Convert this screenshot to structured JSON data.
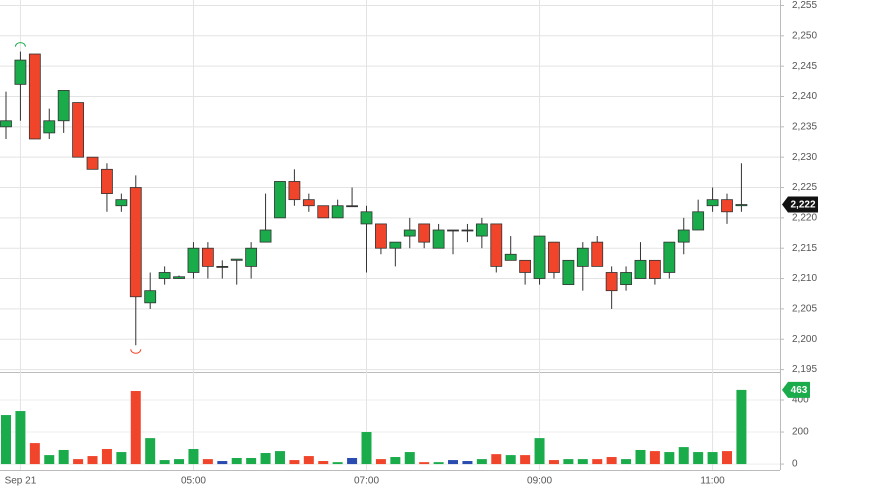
{
  "chart_data": {
    "type": "candlestick",
    "categories": [
      null,
      "Sep 21",
      null,
      null,
      null,
      null,
      null,
      null,
      null,
      null,
      null,
      null,
      null,
      "05:00",
      null,
      null,
      null,
      null,
      null,
      null,
      null,
      null,
      null,
      null,
      null,
      "07:00",
      null,
      null,
      null,
      null,
      null,
      null,
      null,
      null,
      null,
      null,
      null,
      "09:00",
      null,
      null,
      null,
      null,
      null,
      null,
      null,
      null,
      null,
      null,
      null,
      "11:00",
      null,
      null
    ],
    "open": [
      2235,
      2242,
      2247,
      2234,
      2236,
      2239,
      2230,
      2228,
      2222,
      2225,
      2206,
      2210,
      2210,
      2211,
      2215,
      2212,
      2213,
      2212,
      2216,
      2220,
      2226,
      2223,
      2222,
      2220,
      2222,
      2219,
      2219,
      2215,
      2217,
      2219,
      2215,
      2218,
      2218,
      2217,
      2219,
      2213,
      2213,
      2210,
      2216,
      2209,
      2212,
      2216,
      2211,
      2209,
      2210,
      2213,
      2211,
      2216,
      2218,
      2222,
      2223,
      2222
    ],
    "high": [
      2240.8,
      2247.4,
      2247,
      2238,
      2241,
      2239,
      2230,
      2229,
      2224,
      2227,
      2211,
      2212,
      2210.5,
      2216,
      2216,
      2213,
      2213.2,
      2216,
      2224,
      2226,
      2228,
      2224,
      2222,
      2223,
      2225,
      2222,
      2219,
      2216,
      2220,
      2219,
      2219,
      2218,
      2219,
      2220,
      2219,
      2217,
      2213,
      2217,
      2216,
      2213,
      2216,
      2217,
      2212,
      2212,
      2216,
      2213,
      2216,
      2220,
      2223,
      2225,
      2224,
      2229
    ],
    "low": [
      2233,
      2236,
      2233,
      2233,
      2234,
      2230,
      2228,
      2221,
      2221,
      2199,
      2205,
      2209,
      2210,
      2210,
      2210,
      2210,
      2209,
      2210,
      2216,
      2220,
      2222,
      2221,
      2220,
      2220,
      2222,
      2211,
      2214,
      2212,
      2215,
      2215,
      2215,
      2214,
      2216,
      2215,
      2211,
      2213,
      2209,
      2209,
      2210,
      2209,
      2208,
      2212,
      2205,
      2208,
      2210,
      2209,
      2210,
      2214,
      2218,
      2221,
      2219,
      2221
    ],
    "close": [
      2236,
      2246,
      2233,
      2236,
      2241,
      2230,
      2228,
      2224,
      2223,
      2207,
      2208,
      2211,
      2210.3,
      2215,
      2212,
      2212,
      2213.2,
      2215,
      2218,
      2226,
      2223,
      2222,
      2220,
      2222,
      2222,
      2221,
      2215,
      2216,
      2218,
      2216,
      2218,
      2218,
      2218,
      2219,
      2212,
      2214,
      2211,
      2217,
      2211,
      2213,
      2215,
      2212,
      2208,
      2211,
      2213,
      2210,
      2216,
      2218,
      2221,
      2223,
      2221,
      2222.2
    ],
    "volume": [
      306,
      331,
      131,
      56,
      88,
      31,
      50,
      94,
      75,
      456,
      162,
      25,
      31,
      94,
      31,
      19,
      38,
      38,
      69,
      81,
      25,
      50,
      19,
      12,
      38,
      200,
      31,
      44,
      75,
      12,
      12,
      25,
      19,
      31,
      62,
      56,
      56,
      162,
      25,
      31,
      31,
      31,
      44,
      31,
      88,
      81,
      75,
      106,
      75,
      75,
      81,
      463
    ],
    "ylim": [
      2194.6,
      2255.9
    ],
    "yticks": [
      {
        "value": 2195,
        "label": "2,195"
      },
      {
        "value": 2200,
        "label": "2,200"
      },
      {
        "value": 2205,
        "label": "2,205"
      },
      {
        "value": 2210,
        "label": "2,210"
      },
      {
        "value": 2215,
        "label": "2,215"
      },
      {
        "value": 2220,
        "label": "2,220"
      },
      {
        "value": 2225,
        "label": "2,225"
      },
      {
        "value": 2230,
        "label": "2,230"
      },
      {
        "value": 2235,
        "label": "2,235"
      },
      {
        "value": 2240,
        "label": "2,240"
      },
      {
        "value": 2245,
        "label": "2,245"
      },
      {
        "value": 2250,
        "label": "2,250"
      },
      {
        "value": 2255,
        "label": "2,255"
      }
    ],
    "volume_ylim": [
      -37,
      556
    ],
    "volume_yticks": [
      0,
      200,
      400
    ],
    "last_price_label": {
      "value": 2222.2,
      "label": "2,222"
    },
    "up_color": "#1aab4b",
    "down_color": "#f0452a",
    "flat_color": "#2a4cb0",
    "grid": true
  }
}
